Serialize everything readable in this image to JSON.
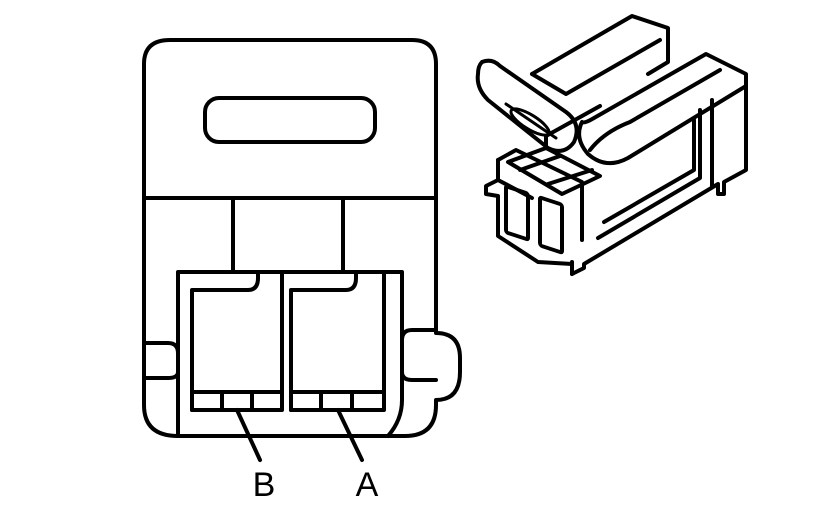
{
  "terminals": [
    {
      "id": "B",
      "label": "B"
    },
    {
      "id": "A",
      "label": "A"
    }
  ],
  "colors": {
    "line": "#000000",
    "background": "#ffffff"
  }
}
